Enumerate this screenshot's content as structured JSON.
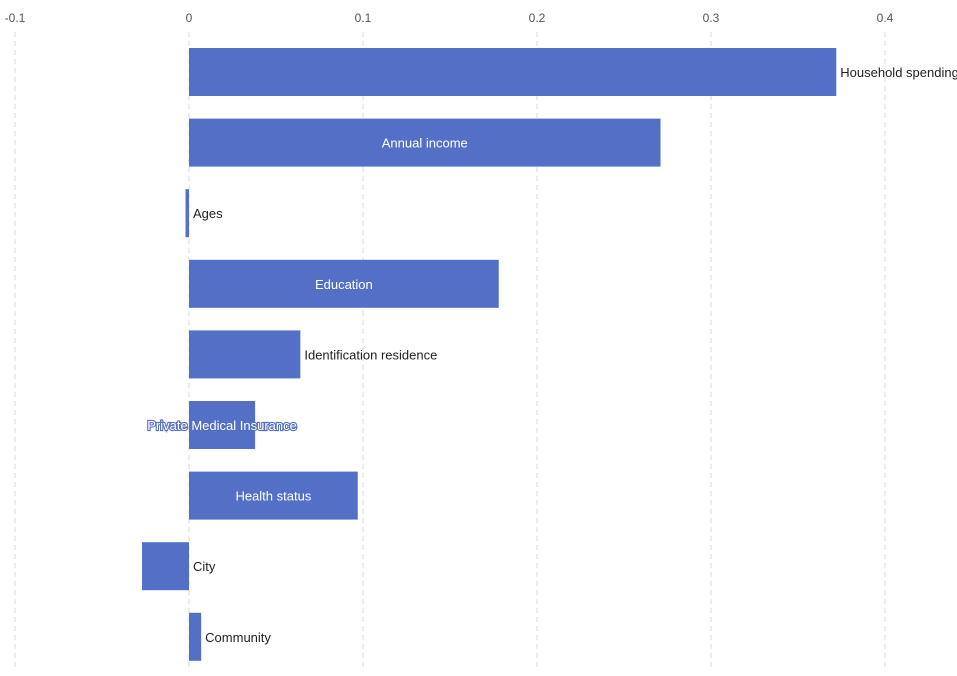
{
  "chart_data": {
    "type": "bar",
    "orientation": "horizontal",
    "title": "",
    "xlabel": "",
    "ylabel": "",
    "xlim": [
      -0.1,
      0.4
    ],
    "x_ticks": [
      -0.1,
      0,
      0.1,
      0.2,
      0.3,
      0.4
    ],
    "x_tick_labels": [
      "-0.1",
      "0",
      "0.1",
      "0.2",
      "0.3",
      "0.4"
    ],
    "grid": true,
    "bar_color": "#5470c6",
    "categories": [
      "Household spending",
      "Annual income",
      "Ages",
      "Education",
      "Identification residence",
      "Private Medical Insurance",
      "Health status",
      "City",
      "Community"
    ],
    "values": [
      0.372,
      0.271,
      -0.002,
      0.178,
      0.064,
      0.038,
      0.097,
      -0.027,
      0.007
    ],
    "label_placement": [
      "right",
      "inside",
      "right",
      "inside",
      "right",
      "inside",
      "inside",
      "right",
      "right"
    ]
  }
}
